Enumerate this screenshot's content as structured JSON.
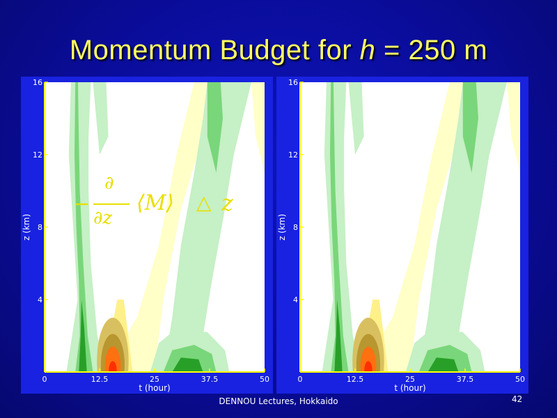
{
  "slide": {
    "title_pre": "Momentum Budget for ",
    "title_var": "h",
    "title_post": " = 250 m",
    "footer": "DENNOU Lectures, Hokkaido",
    "page_number": "42"
  },
  "formula": {
    "minus": "−",
    "numerator": "∂",
    "denominator": "∂z",
    "bracket_term": "⟨M⟩",
    "delta": "△",
    "variable": "z"
  },
  "colors": {
    "frame": "#1822e0",
    "axes": "#ffff00",
    "tick_text": "#ffffff",
    "formula": "#e8e000",
    "green_light": "#c6f0c6",
    "green_mid": "#7ad67a",
    "green_dark": "#28a028",
    "yellow_light": "#ffffc8",
    "yellow_mid": "#fff08a",
    "tan": "#d8c060",
    "olive": "#b89630",
    "orange": "#ff7010",
    "red": "#ff3000"
  },
  "chart_data": [
    {
      "type": "heatmap",
      "panel": "left",
      "xlabel": "t (hour)",
      "ylabel": "z (km)",
      "xlim": [
        0,
        50
      ],
      "ylim": [
        0,
        16
      ],
      "xticks": [
        0,
        12.5,
        25,
        37.5,
        50
      ],
      "xtick_labels": [
        "0",
        "12.5",
        "25",
        "37.5",
        "50"
      ],
      "yticks": [
        4,
        8,
        12,
        16
      ],
      "ytick_labels": [
        "4",
        "8",
        "12",
        "16"
      ],
      "contour_levels": [
        "green_light",
        "green_mid",
        "green_dark",
        "yellow_light",
        "yellow_mid",
        "tan",
        "olive",
        "orange",
        "red"
      ]
    },
    {
      "type": "heatmap",
      "panel": "right",
      "xlabel": "t (hour)",
      "ylabel": "z (km)",
      "xlim": [
        0,
        50
      ],
      "ylim": [
        0,
        16
      ],
      "xticks": [
        0,
        12.5,
        25,
        37.5,
        50
      ],
      "xtick_labels": [
        "0",
        "12.5",
        "25",
        "37.5",
        "50"
      ],
      "yticks": [
        4,
        8,
        12,
        16
      ],
      "ytick_labels": [
        "4",
        "8",
        "12",
        "16"
      ],
      "contour_levels": [
        "green_light",
        "green_mid",
        "green_dark",
        "yellow_light",
        "yellow_mid",
        "tan",
        "olive",
        "orange",
        "red"
      ]
    }
  ]
}
